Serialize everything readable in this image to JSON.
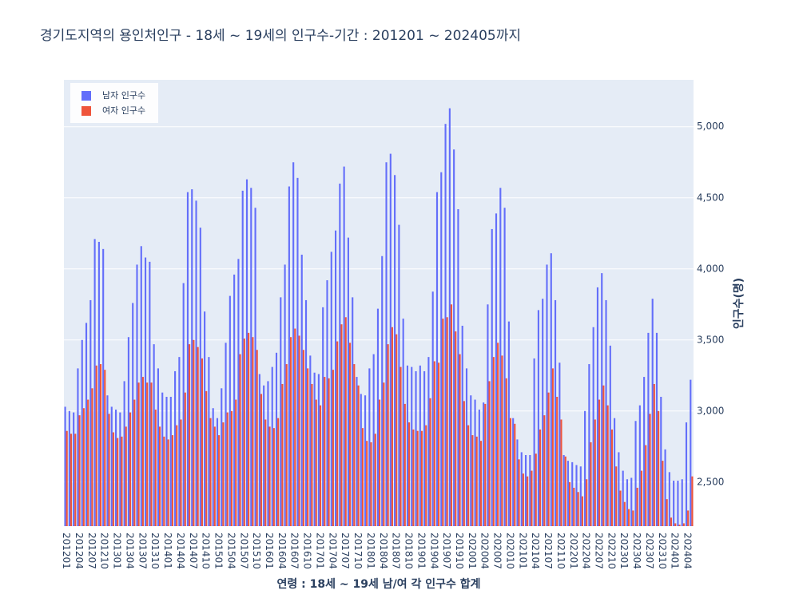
{
  "chart_data": {
    "type": "bar",
    "title": "경기도지역의 용인처인구 - 18세 ~ 19세의 인구수-기간 : 201201 ~ 202405까지",
    "x_label": "연령 : 18세 ~ 19세 남/여 각 인구수 합계",
    "y_label": "인구수(명)",
    "categories": [
      "201201",
      null,
      null,
      "201204",
      null,
      null,
      "201207",
      null,
      null,
      "201210",
      null,
      null,
      "201301",
      null,
      null,
      "201304",
      null,
      null,
      "201307",
      null,
      null,
      "201310",
      null,
      null,
      "201401",
      null,
      null,
      "201404",
      null,
      null,
      "201407",
      null,
      null,
      "201410",
      null,
      null,
      "201501",
      null,
      null,
      "201504",
      null,
      null,
      "201507",
      null,
      null,
      "201510",
      null,
      null,
      "201601",
      null,
      null,
      "201604",
      null,
      null,
      "201607",
      null,
      null,
      "201610",
      null,
      null,
      "201701",
      null,
      null,
      "201704",
      null,
      null,
      "201707",
      null,
      null,
      "201710",
      null,
      null,
      "201801",
      null,
      null,
      "201804",
      null,
      null,
      "201807",
      null,
      null,
      "201810",
      null,
      null,
      "201901",
      null,
      null,
      "201904",
      null,
      null,
      "201907",
      null,
      null,
      "201910",
      null,
      null,
      "202001",
      null,
      null,
      "202004",
      null,
      null,
      "202007",
      null,
      null,
      "202010",
      null,
      null,
      "202101",
      null,
      null,
      "202104",
      null,
      null,
      "202107",
      null,
      null,
      "202110",
      null,
      null,
      "202201",
      null,
      null,
      "202204",
      null,
      null,
      "202207",
      null,
      null,
      "202210",
      null,
      null,
      "202301",
      null,
      null,
      "202304",
      null,
      null,
      "202307",
      null,
      null,
      "202310",
      null,
      null,
      "202401",
      null,
      null,
      "202404",
      null
    ],
    "series": [
      {
        "name": "남자 인구수",
        "color": "#636efa",
        "values": [
          3030,
          3000,
          2990,
          3300,
          3500,
          3620,
          3780,
          4210,
          4190,
          4140,
          3110,
          3030,
          3010,
          2990,
          3210,
          3520,
          3760,
          4030,
          4160,
          4080,
          4050,
          3470,
          3300,
          3130,
          3100,
          3100,
          3280,
          3380,
          3900,
          4540,
          4560,
          4480,
          4290,
          3700,
          3380,
          3020,
          2950,
          3160,
          3480,
          3810,
          3960,
          4070,
          4550,
          4630,
          4570,
          4430,
          3260,
          3180,
          3210,
          3310,
          3410,
          3800,
          4030,
          4580,
          4750,
          4640,
          4100,
          3780,
          3390,
          3270,
          3260,
          3730,
          3920,
          4120,
          4270,
          4600,
          4720,
          4220,
          3800,
          3240,
          3120,
          3110,
          3300,
          3400,
          3720,
          4090,
          4750,
          4810,
          4660,
          4310,
          3650,
          3320,
          3310,
          3280,
          3320,
          3280,
          3380,
          3840,
          4540,
          4680,
          5020,
          5130,
          4840,
          4420,
          3600,
          3300,
          3110,
          3080,
          3010,
          3060,
          3750,
          4280,
          4390,
          4570,
          4430,
          3630,
          2950,
          2800,
          2710,
          2690,
          2690,
          3370,
          3710,
          3790,
          4030,
          4110,
          3780,
          3340,
          2690,
          2650,
          2640,
          2620,
          2610,
          3000,
          3330,
          3590,
          3870,
          3970,
          3780,
          3460,
          2950,
          2710,
          2580,
          2520,
          2530,
          2930,
          3040,
          3240,
          3550,
          3790,
          3550,
          3100,
          2730,
          2570,
          2510,
          2510,
          2520,
          2920,
          3220
        ]
      },
      {
        "name": "여자 인구수",
        "color": "#ef553b",
        "values": [
          2860,
          2840,
          2840,
          2970,
          3020,
          3080,
          3160,
          3320,
          3330,
          3290,
          2980,
          2850,
          2810,
          2820,
          2890,
          2990,
          3080,
          3200,
          3240,
          3200,
          3200,
          3010,
          2890,
          2820,
          2800,
          2830,
          2900,
          2940,
          3130,
          3470,
          3500,
          3450,
          3370,
          3140,
          2950,
          2890,
          2830,
          2920,
          2990,
          3000,
          3080,
          3400,
          3510,
          3550,
          3520,
          3430,
          3120,
          2940,
          2890,
          2880,
          2950,
          3190,
          3330,
          3520,
          3580,
          3530,
          3430,
          3300,
          3190,
          3080,
          3040,
          3240,
          3230,
          3290,
          3490,
          3610,
          3660,
          3480,
          3330,
          3180,
          2880,
          2790,
          2780,
          2840,
          3080,
          3200,
          3470,
          3590,
          3540,
          3310,
          3050,
          2920,
          2870,
          2860,
          2860,
          2900,
          3090,
          3350,
          3340,
          3650,
          3660,
          3750,
          3560,
          3400,
          3070,
          2900,
          2830,
          2820,
          2790,
          3050,
          3210,
          3380,
          3480,
          3390,
          3230,
          2950,
          2910,
          2660,
          2560,
          2540,
          2580,
          2700,
          2870,
          2970,
          3130,
          3300,
          3100,
          2940,
          2680,
          2500,
          2460,
          2430,
          2400,
          2520,
          2780,
          2940,
          3080,
          3180,
          3040,
          2870,
          2610,
          2440,
          2360,
          2310,
          2300,
          2460,
          2580,
          2760,
          2980,
          3190,
          3000,
          2650,
          2380,
          2250,
          2210,
          2200,
          2210,
          2300,
          2540
        ]
      }
    ],
    "ylim": [
      2190,
      5330
    ],
    "yticks": [
      {
        "value": 2500,
        "label": "2,500"
      },
      {
        "value": 3000,
        "label": "3,000"
      },
      {
        "value": 3500,
        "label": "3,500"
      },
      {
        "value": 4000,
        "label": "4,000"
      },
      {
        "value": 4500,
        "label": "4,500"
      },
      {
        "value": 5000,
        "label": "5,000"
      }
    ],
    "grid": true,
    "legend": "upper left"
  }
}
